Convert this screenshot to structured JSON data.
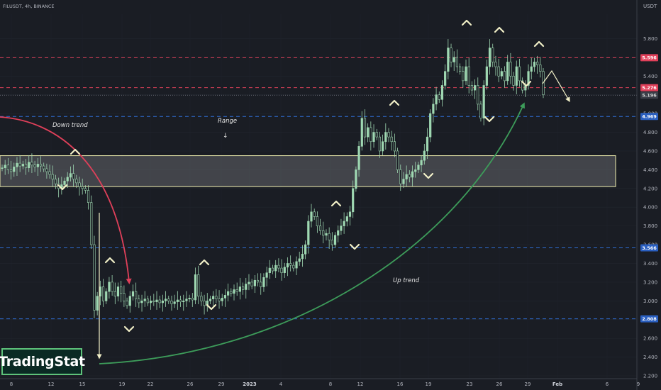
{
  "header": {
    "symbol": "FILUSDT, 4h, BINANCE"
  },
  "logo": {
    "text": "TradingStat"
  },
  "colors": {
    "background": "#1a1d24",
    "candle": "#9fd8b2",
    "red_level": "#e0405a",
    "blue_level": "#2f6fd6",
    "range_box": "#f0f0b0",
    "down_trend": "#e0405a",
    "up_trend": "#3d9c5a",
    "marker": "#f2f0c8"
  },
  "chart_data": {
    "type": "candlestick",
    "y_axis": {
      "unit": "USDT",
      "range": [
        2.2,
        6.0
      ],
      "ticks": [
        "5.800",
        "5.600",
        "5.400",
        "5.200",
        "5.000",
        "4.800",
        "4.600",
        "4.400",
        "4.200",
        "4.000",
        "3.800",
        "3.600",
        "3.400",
        "3.200",
        "3.000",
        "2.800",
        "2.600",
        "2.400",
        "2.200"
      ]
    },
    "x_axis": {
      "ticks": [
        "8",
        "12",
        "15",
        "19",
        "22",
        "26",
        "29",
        "2023",
        "4",
        "8",
        "12",
        "16",
        "19",
        "23",
        "26",
        "29",
        "Feb",
        "6",
        "9"
      ]
    },
    "price_levels": [
      {
        "value": 5.596,
        "label": "5.596",
        "style": "red-dashed"
      },
      {
        "value": 5.276,
        "label": "5.276",
        "style": "red-dashed"
      },
      {
        "value": 5.196,
        "label": "5.196",
        "style": "current-price"
      },
      {
        "value": 4.969,
        "label": "4.969",
        "style": "blue-dashed"
      },
      {
        "value": 3.566,
        "label": "3.566",
        "style": "blue-dashed"
      },
      {
        "value": 2.808,
        "label": "2.808",
        "style": "blue-dashed"
      }
    ],
    "range_zone": {
      "low": 4.22,
      "high": 4.55,
      "label": "Range"
    },
    "annotations": [
      {
        "text": "Down trend"
      },
      {
        "text": "Up trend"
      }
    ],
    "series": [
      {
        "close": [
          4.42,
          4.45,
          4.4,
          4.38,
          4.43,
          4.47,
          4.44,
          4.46,
          4.42,
          4.48,
          4.45,
          4.43,
          4.46,
          4.44,
          4.41,
          4.38,
          4.35,
          4.3,
          4.25,
          4.2,
          4.24,
          4.28,
          4.32,
          4.36,
          4.3,
          4.26,
          4.22,
          4.2,
          4.18,
          4.05,
          3.6,
          2.9,
          3.05,
          3.15,
          3.0,
          3.1,
          3.2,
          3.1,
          3.05,
          3.15,
          3.08,
          3.0,
          2.95,
          3.05,
          3.1,
          3.02,
          2.98,
          3.0,
          3.02,
          2.98,
          3.0,
          2.99,
          3.01,
          2.98,
          3.0,
          3.02,
          3.0,
          2.97,
          2.99,
          3.01,
          2.99,
          3.0,
          3.02,
          3.03,
          3.01,
          3.28,
          3.05,
          3.0,
          2.95,
          3.0,
          3.02,
          3.05,
          3.02,
          3.0,
          3.03,
          3.06,
          3.1,
          3.08,
          3.12,
          3.1,
          3.15,
          3.12,
          3.18,
          3.2,
          3.16,
          3.22,
          3.2,
          3.15,
          3.25,
          3.3,
          3.35,
          3.32,
          3.38,
          3.35,
          3.3,
          3.36,
          3.4,
          3.38,
          3.35,
          3.42,
          3.45,
          3.5,
          3.6,
          3.85,
          3.95,
          3.9,
          3.8,
          3.75,
          3.7,
          3.72,
          3.65,
          3.6,
          3.7,
          3.75,
          3.8,
          3.85,
          3.9,
          3.95,
          4.2,
          4.4,
          4.65,
          4.95,
          4.75,
          4.85,
          4.7,
          4.8,
          4.75,
          4.6,
          4.7,
          4.8,
          4.75,
          4.7,
          4.6,
          4.4,
          4.25,
          4.3,
          4.35,
          4.32,
          4.38,
          4.4,
          4.45,
          4.5,
          4.6,
          4.75,
          5.0,
          5.1,
          5.2,
          5.15,
          5.3,
          5.45,
          5.7,
          5.55,
          5.6,
          5.5,
          5.45,
          5.35,
          5.5,
          5.3,
          5.25,
          5.3,
          5.1,
          4.95,
          5.3,
          5.5,
          5.7,
          5.55,
          5.5,
          5.4,
          5.45,
          5.35,
          5.55,
          5.4,
          5.3,
          5.5,
          5.35,
          5.25,
          5.3,
          5.45,
          5.5,
          5.55,
          5.52,
          5.45,
          5.2
        ]
      }
    ]
  }
}
